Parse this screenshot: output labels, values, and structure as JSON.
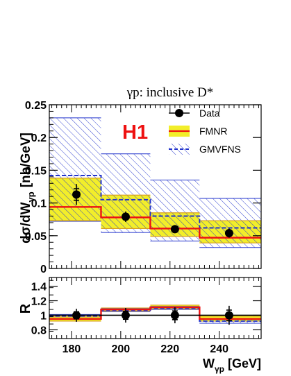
{
  "chart_data": [
    {
      "type": "line",
      "title": "γp:  inclusive D*",
      "experiment_label": "H1",
      "ylabel_main": "dσ/dW",
      "ylabel_sub": "γp",
      "ylabel_unit": "[nb/GeV]",
      "ylim": [
        0,
        0.25
      ],
      "y_ticks": [
        "0",
        "0.05",
        "0.1",
        "0.15",
        "0.2",
        "0.25"
      ],
      "y_tick_values": [
        0,
        0.05,
        0.1,
        0.15,
        0.2,
        0.25
      ],
      "xlim": [
        171,
        257
      ],
      "bin_edges": [
        171,
        192,
        212,
        232,
        257
      ],
      "legend": {
        "placement": "top-right",
        "entries": [
          "Data",
          "FMNR",
          "GMVFNS"
        ]
      },
      "series": [
        {
          "name": "Data",
          "x": [
            182,
            202,
            222,
            244
          ],
          "y": [
            0.113,
            0.079,
            0.06,
            0.054
          ],
          "y_err": [
            0.016,
            0.008,
            0.006,
            0.007
          ]
        },
        {
          "name": "FMNR",
          "central": [
            0.094,
            0.078,
            0.061,
            0.047
          ],
          "band_low": [
            0.073,
            0.061,
            0.049,
            0.039
          ],
          "band_high": [
            0.138,
            0.112,
            0.085,
            0.073
          ]
        },
        {
          "name": "GMVFNS",
          "central": [
            0.142,
            0.105,
            0.08,
            0.062
          ],
          "band_low": [
            0.072,
            0.055,
            0.042,
            0.032
          ],
          "band_high": [
            0.23,
            0.175,
            0.135,
            0.107
          ]
        }
      ],
      "colors": {
        "data": "#000000",
        "fmnr_line": "#ee1111",
        "fmnr_band": "#f2ee2a",
        "gmvfns": "#2233cc",
        "h1_label": "#ee1111"
      }
    },
    {
      "type": "line",
      "ylabel": "R",
      "xlabel_main": "W",
      "xlabel_sub": "γp",
      "xlabel_unit": "[GeV]",
      "ylim": [
        0.68,
        1.52
      ],
      "y_ticks": [
        "0.8",
        "1",
        "1.2",
        "1.4"
      ],
      "y_tick_values": [
        0.8,
        1.0,
        1.2,
        1.4
      ],
      "x_ticks": [
        "180",
        "200",
        "220",
        "240"
      ],
      "x_tick_values": [
        180,
        200,
        220,
        240
      ],
      "xlim": [
        171,
        257
      ],
      "bin_edges": [
        171,
        192,
        212,
        232,
        257
      ],
      "series": [
        {
          "name": "Data",
          "x": [
            182,
            202,
            222,
            244
          ],
          "y": [
            1.0,
            1.0,
            1.0,
            1.0
          ],
          "y_err": [
            0.09,
            0.1,
            0.11,
            0.13
          ]
        },
        {
          "name": "FMNR",
          "central": [
            0.95,
            1.08,
            1.11,
            0.95
          ],
          "band_low": [
            0.92,
            1.06,
            1.09,
            0.92
          ],
          "band_high": [
            0.98,
            1.1,
            1.14,
            0.99
          ]
        },
        {
          "name": "GMVFNS",
          "central": [
            0.99,
            1.07,
            1.1,
            0.92
          ],
          "band_low": [
            0.98,
            1.05,
            1.08,
            0.89
          ],
          "band_high": [
            1.01,
            1.09,
            1.12,
            0.95
          ]
        }
      ]
    }
  ]
}
